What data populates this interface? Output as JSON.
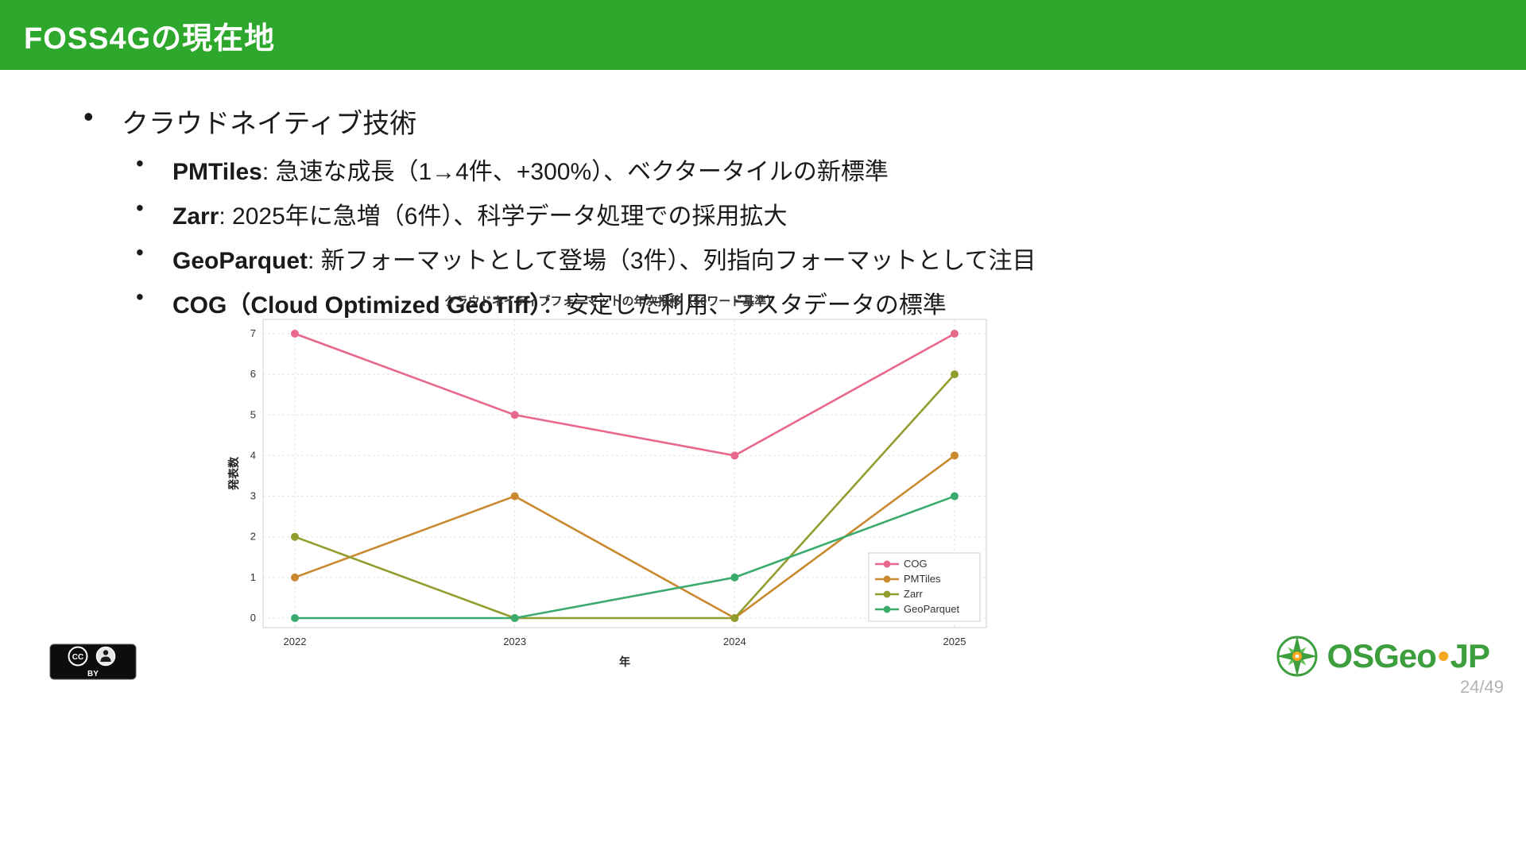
{
  "header": {
    "title": "FOSS4Gの現在地"
  },
  "bullets": {
    "main": "クラウドネイティブ技術",
    "items": [
      {
        "term": "PMTiles",
        "text": ": 急速な成長（1→4件、+300%）、ベクタータイルの新標準"
      },
      {
        "term": "Zarr",
        "text": ": 2025年に急増（6件）、科学データ処理での採用拡大"
      },
      {
        "term": "GeoParquet",
        "text": ": 新フォーマットとして登場（3件）、列指向フォーマットとして注目"
      },
      {
        "term": "COG（Cloud Optimized GeoTiff）",
        "text": "：安定した利用、ラスタデータの標準"
      }
    ]
  },
  "chart_data": {
    "type": "line",
    "title": "クラウドネイティブフォーマットの年次推移（50ワード基準）",
    "xlabel": "年",
    "ylabel": "発表数",
    "x": [
      2022,
      2023,
      2024,
      2025
    ],
    "ylim": [
      0,
      7
    ],
    "yticks": [
      0,
      1,
      2,
      3,
      4,
      5,
      6,
      7
    ],
    "grid": true,
    "legend_position": "lower right",
    "series": [
      {
        "name": "COG",
        "color": "#e8688b",
        "values": [
          7,
          5,
          4,
          7
        ]
      },
      {
        "name": "PMTiles",
        "color": "#c9892f",
        "values": [
          1,
          3,
          0,
          4
        ]
      },
      {
        "name": "Zarr",
        "color": "#939d2d",
        "values": [
          2,
          0,
          0,
          6
        ]
      },
      {
        "name": "GeoParquet",
        "color": "#3aab6d",
        "values": [
          0,
          0,
          1,
          3
        ]
      }
    ]
  },
  "footer": {
    "cc_text": "CC",
    "license": "BY",
    "logo": {
      "osgeo": "OSGeo",
      "sep": "•",
      "jp": "JP"
    },
    "page_number": "24/49"
  },
  "colors": {
    "header_green": "#2EA82C",
    "logo_green": "#3c9e3c",
    "logo_orange": "#f5a623"
  },
  "icons": [
    "cc-icon",
    "person-icon",
    "compass-rose-icon"
  ]
}
